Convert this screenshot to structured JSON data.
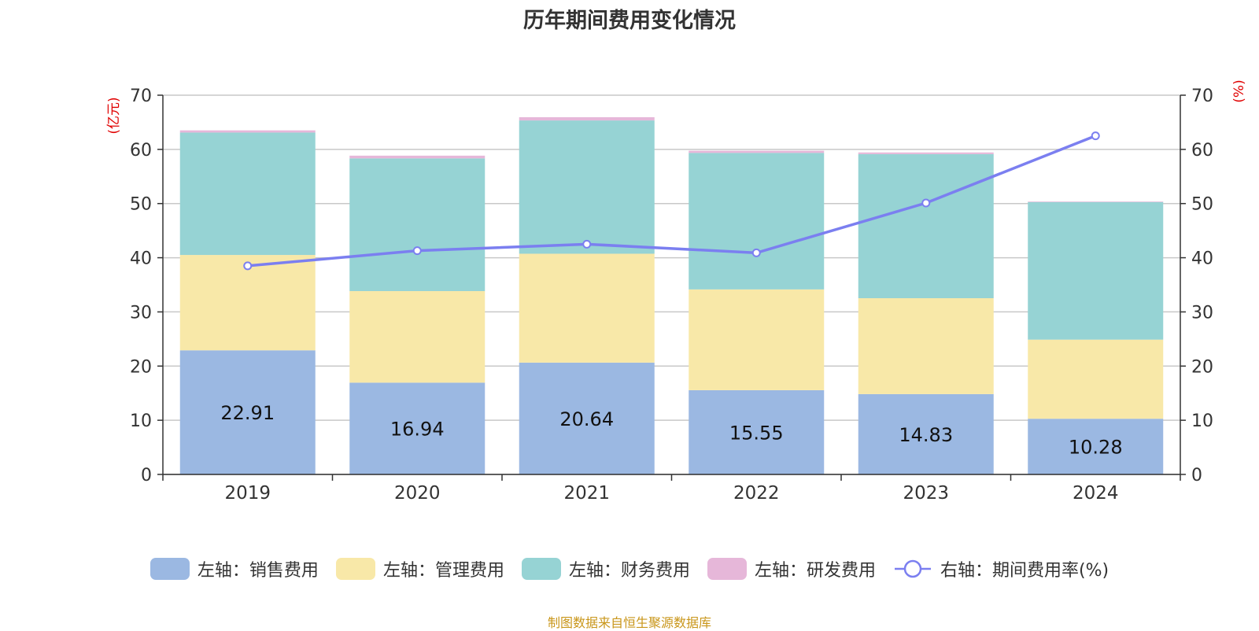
{
  "title": "历年期间费用变化情况",
  "left_unit": "(亿元)",
  "right_unit": "(%)",
  "footer": "制图数据来自恒生聚源数据库",
  "chart_data": {
    "type": "bar",
    "title": "历年期间费用变化情况",
    "categories": [
      "2019",
      "2020",
      "2021",
      "2022",
      "2023",
      "2024"
    ],
    "stacked": true,
    "series": [
      {
        "name": "左轴：销售费用",
        "axis": "left",
        "color": "#9bb8e2",
        "values": [
          22.91,
          16.94,
          20.64,
          15.55,
          14.83,
          10.28
        ]
      },
      {
        "name": "左轴：管理费用",
        "axis": "left",
        "color": "#f8e8a8",
        "values": [
          17.6,
          16.9,
          20.1,
          18.6,
          17.7,
          14.6
        ]
      },
      {
        "name": "左轴：财务费用",
        "axis": "left",
        "color": "#96d3d4",
        "values": [
          22.6,
          24.5,
          24.6,
          25.2,
          26.6,
          25.4
        ]
      },
      {
        "name": "左轴：研发费用",
        "axis": "left",
        "color": "#e6b7d9",
        "values": [
          0.4,
          0.5,
          0.6,
          0.4,
          0.3,
          0.1
        ]
      },
      {
        "name": "右轴：期间费用率(%)",
        "axis": "right",
        "type": "line",
        "color": "#7b7ff0",
        "values": [
          38.5,
          41.3,
          42.5,
          40.9,
          50.1,
          62.5
        ]
      }
    ],
    "data_labels_series": "左轴：销售费用",
    "y_left": {
      "min": 0,
      "max": 70,
      "ticks": [
        0,
        10,
        20,
        30,
        40,
        50,
        60,
        70
      ],
      "unit": "(亿元)"
    },
    "y_right": {
      "min": 0,
      "max": 70,
      "ticks": [
        0,
        10,
        20,
        30,
        40,
        50,
        60,
        70
      ],
      "unit": "(%)"
    },
    "grid": true,
    "legend_position": "bottom"
  }
}
